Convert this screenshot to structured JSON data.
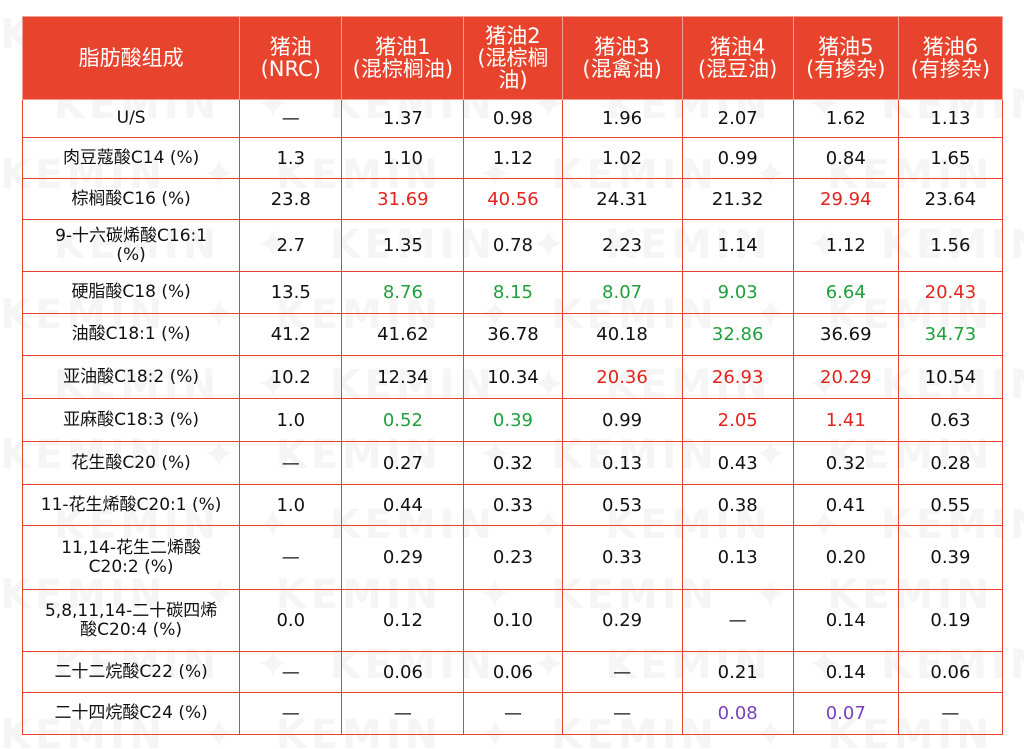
{
  "watermark": "KEMIN",
  "colors": {
    "header_bg": "#e8432c",
    "red": "#e3231e",
    "green": "#1fa03c",
    "purple": "#7a3fbf",
    "black": "#111111"
  },
  "headers": [
    "脂肪酸组成",
    "猪油\n(NRC)",
    "猪油1\n(混棕榈油)",
    "猪油2\n(混棕榈\n油)",
    "猪油3\n(混禽油)",
    "猪油4\n(混豆油)",
    "猪油5\n(有掺杂)",
    "猪油6\n(有掺杂)"
  ],
  "rows": [
    {
      "label": "U/S",
      "cells": [
        {
          "v": "—",
          "c": "black"
        },
        {
          "v": "1.37",
          "c": "black"
        },
        {
          "v": "0.98",
          "c": "black"
        },
        {
          "v": "1.96",
          "c": "black"
        },
        {
          "v": "2.07",
          "c": "black"
        },
        {
          "v": "1.62",
          "c": "black"
        },
        {
          "v": "1.13",
          "c": "black"
        }
      ]
    },
    {
      "label": "肉豆蔻酸C14 (%)",
      "cells": [
        {
          "v": "1.3",
          "c": "black"
        },
        {
          "v": "1.10",
          "c": "black"
        },
        {
          "v": "1.12",
          "c": "black"
        },
        {
          "v": "1.02",
          "c": "black"
        },
        {
          "v": "0.99",
          "c": "black"
        },
        {
          "v": "0.84",
          "c": "black"
        },
        {
          "v": "1.65",
          "c": "black"
        }
      ]
    },
    {
      "label": "棕榈酸C16 (%)",
      "cells": [
        {
          "v": "23.8",
          "c": "black"
        },
        {
          "v": "31.69",
          "c": "red"
        },
        {
          "v": "40.56",
          "c": "red"
        },
        {
          "v": "24.31",
          "c": "black"
        },
        {
          "v": "21.32",
          "c": "black"
        },
        {
          "v": "29.94",
          "c": "red"
        },
        {
          "v": "23.64",
          "c": "black"
        }
      ]
    },
    {
      "label": "9-十六碳烯酸C16:1\n(%)",
      "cells": [
        {
          "v": "2.7",
          "c": "black"
        },
        {
          "v": "1.35",
          "c": "black"
        },
        {
          "v": "0.78",
          "c": "black"
        },
        {
          "v": "2.23",
          "c": "black"
        },
        {
          "v": "1.14",
          "c": "black"
        },
        {
          "v": "1.12",
          "c": "black"
        },
        {
          "v": "1.56",
          "c": "black"
        }
      ]
    },
    {
      "label": "硬脂酸C18 (%)",
      "cells": [
        {
          "v": "13.5",
          "c": "black"
        },
        {
          "v": "8.76",
          "c": "green"
        },
        {
          "v": "8.15",
          "c": "green"
        },
        {
          "v": "8.07",
          "c": "green"
        },
        {
          "v": "9.03",
          "c": "green"
        },
        {
          "v": "6.64",
          "c": "green"
        },
        {
          "v": "20.43",
          "c": "red"
        }
      ]
    },
    {
      "label": "油酸C18:1 (%)",
      "cells": [
        {
          "v": "41.2",
          "c": "black"
        },
        {
          "v": "41.62",
          "c": "black"
        },
        {
          "v": "36.78",
          "c": "black"
        },
        {
          "v": "40.18",
          "c": "black"
        },
        {
          "v": "32.86",
          "c": "green"
        },
        {
          "v": "36.69",
          "c": "black"
        },
        {
          "v": "34.73",
          "c": "green"
        }
      ]
    },
    {
      "label": "亚油酸C18:2 (%)",
      "cells": [
        {
          "v": "10.2",
          "c": "black"
        },
        {
          "v": "12.34",
          "c": "black"
        },
        {
          "v": "10.34",
          "c": "black"
        },
        {
          "v": "20.36",
          "c": "red"
        },
        {
          "v": "26.93",
          "c": "red"
        },
        {
          "v": "20.29",
          "c": "red"
        },
        {
          "v": "10.54",
          "c": "black"
        }
      ]
    },
    {
      "label": "亚麻酸C18:3 (%)",
      "cells": [
        {
          "v": "1.0",
          "c": "black"
        },
        {
          "v": "0.52",
          "c": "green"
        },
        {
          "v": "0.39",
          "c": "green"
        },
        {
          "v": "0.99",
          "c": "black"
        },
        {
          "v": "2.05",
          "c": "red"
        },
        {
          "v": "1.41",
          "c": "red"
        },
        {
          "v": "0.63",
          "c": "black"
        }
      ]
    },
    {
      "label": "花生酸C20 (%)",
      "cells": [
        {
          "v": "—",
          "c": "black"
        },
        {
          "v": "0.27",
          "c": "black"
        },
        {
          "v": "0.32",
          "c": "black"
        },
        {
          "v": "0.13",
          "c": "black"
        },
        {
          "v": "0.43",
          "c": "black"
        },
        {
          "v": "0.32",
          "c": "black"
        },
        {
          "v": "0.28",
          "c": "black"
        }
      ]
    },
    {
      "label": "11-花生烯酸C20:1 (%)",
      "cells": [
        {
          "v": "1.0",
          "c": "black"
        },
        {
          "v": "0.44",
          "c": "black"
        },
        {
          "v": "0.33",
          "c": "black"
        },
        {
          "v": "0.53",
          "c": "black"
        },
        {
          "v": "0.38",
          "c": "black"
        },
        {
          "v": "0.41",
          "c": "black"
        },
        {
          "v": "0.55",
          "c": "black"
        }
      ]
    },
    {
      "label": "11,14-花生二烯酸\nC20:2 (%)",
      "cells": [
        {
          "v": "—",
          "c": "black"
        },
        {
          "v": "0.29",
          "c": "black"
        },
        {
          "v": "0.23",
          "c": "black"
        },
        {
          "v": "0.33",
          "c": "black"
        },
        {
          "v": "0.13",
          "c": "black"
        },
        {
          "v": "0.20",
          "c": "black"
        },
        {
          "v": "0.39",
          "c": "black"
        }
      ]
    },
    {
      "label": "5,8,11,14-二十碳四烯\n酸C20:4 (%)",
      "cells": [
        {
          "v": "0.0",
          "c": "black"
        },
        {
          "v": "0.12",
          "c": "black"
        },
        {
          "v": "0.10",
          "c": "black"
        },
        {
          "v": "0.29",
          "c": "black"
        },
        {
          "v": "—",
          "c": "black"
        },
        {
          "v": "0.14",
          "c": "black"
        },
        {
          "v": "0.19",
          "c": "black"
        }
      ]
    },
    {
      "label": "二十二烷酸C22 (%)",
      "cells": [
        {
          "v": "—",
          "c": "black"
        },
        {
          "v": "0.06",
          "c": "black"
        },
        {
          "v": "0.06",
          "c": "black"
        },
        {
          "v": "—",
          "c": "black"
        },
        {
          "v": "0.21",
          "c": "black"
        },
        {
          "v": "0.14",
          "c": "black"
        },
        {
          "v": "0.06",
          "c": "black"
        }
      ]
    },
    {
      "label": "二十四烷酸C24 (%)",
      "cells": [
        {
          "v": "—",
          "c": "black"
        },
        {
          "v": "—",
          "c": "black"
        },
        {
          "v": "—",
          "c": "black"
        },
        {
          "v": "—",
          "c": "black"
        },
        {
          "v": "0.08",
          "c": "purple"
        },
        {
          "v": "0.07",
          "c": "purple"
        },
        {
          "v": "—",
          "c": "black"
        }
      ]
    }
  ]
}
